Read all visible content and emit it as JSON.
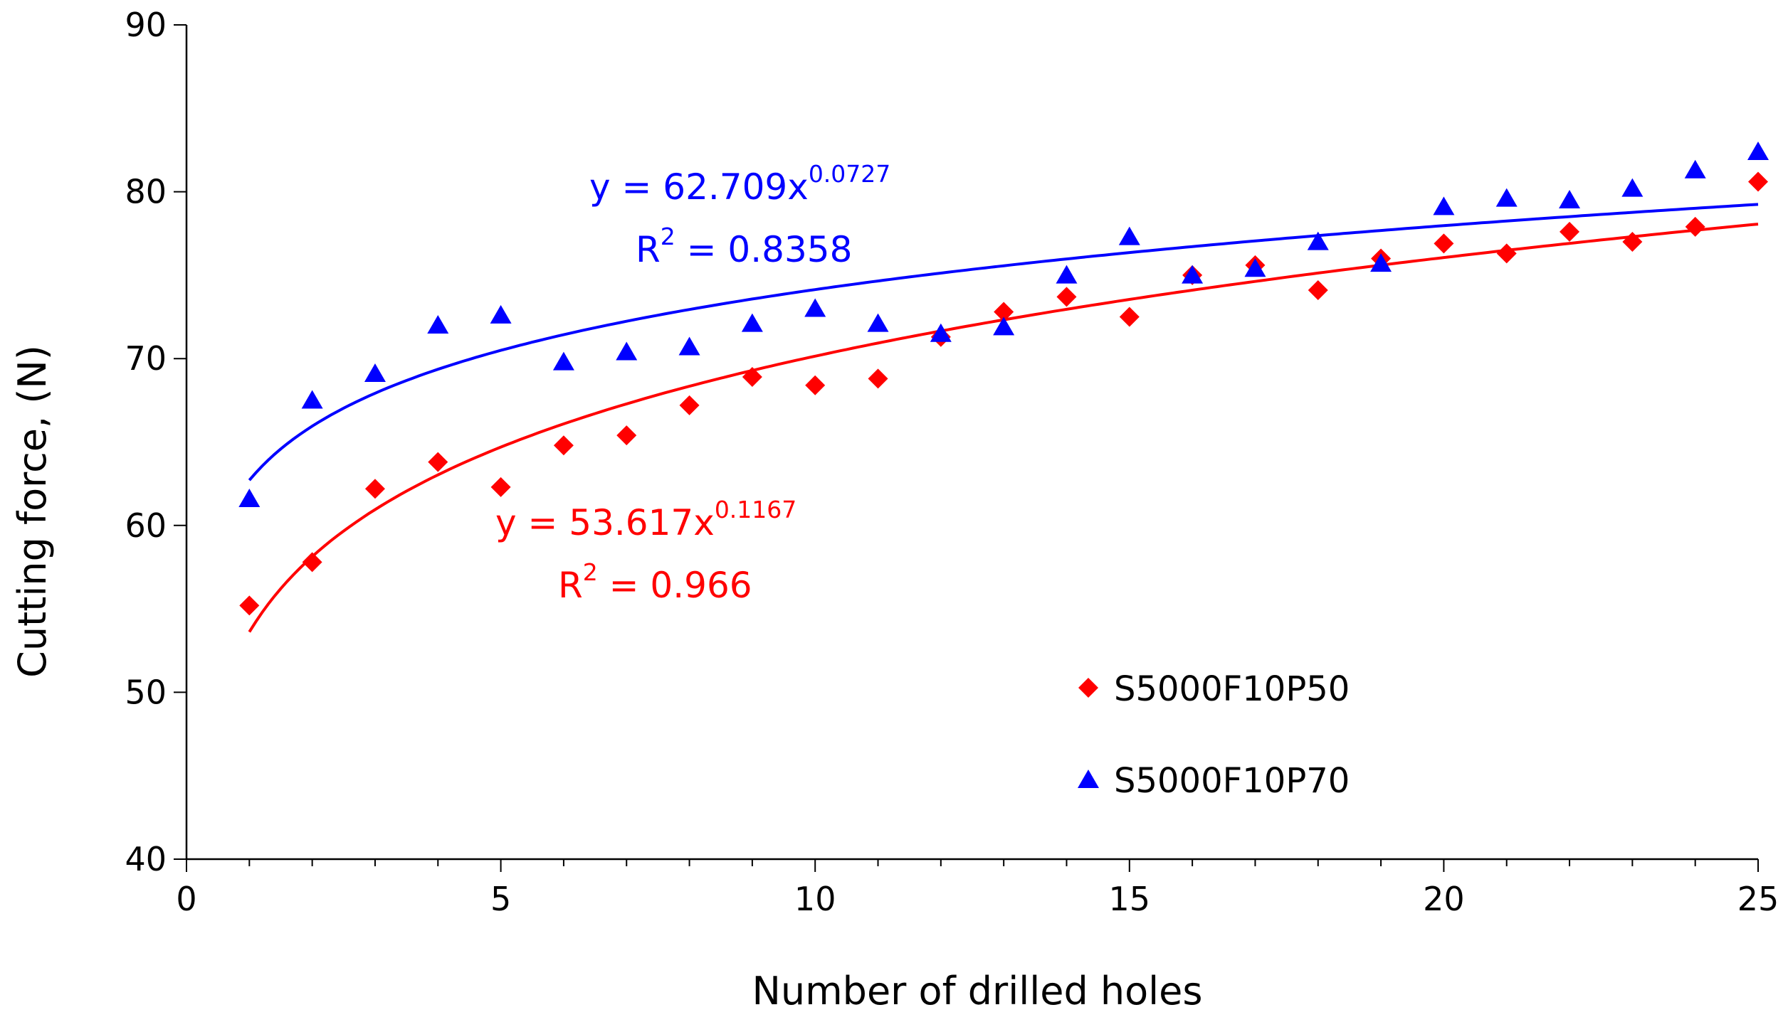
{
  "chart_data": {
    "type": "scatter",
    "title": "",
    "xlabel": "Number of drilled holes",
    "ylabel": "Cutting force, (N)",
    "xlim": [
      0,
      25
    ],
    "ylim": [
      40,
      90
    ],
    "xticks": [
      0,
      5,
      10,
      15,
      20,
      25
    ],
    "xtick_labels": [
      "0",
      "5",
      "10",
      "15",
      "20",
      "25"
    ],
    "yticks": [
      40,
      50,
      60,
      70,
      80,
      90
    ],
    "ytick_labels": [
      "40",
      "50",
      "60",
      "70",
      "80",
      "90"
    ],
    "grid": false,
    "legend_position": "lower-right",
    "series": [
      {
        "name": "S5000F10P50",
        "marker": "diamond",
        "color": "#ff0000",
        "x": [
          1,
          2,
          3,
          4,
          5,
          6,
          7,
          8,
          9,
          10,
          11,
          12,
          13,
          14,
          15,
          16,
          17,
          18,
          19,
          20,
          21,
          22,
          23,
          24,
          25
        ],
        "y": [
          55.2,
          57.8,
          62.2,
          63.8,
          62.3,
          64.8,
          65.4,
          67.2,
          68.9,
          68.4,
          68.8,
          71.3,
          72.8,
          73.7,
          72.5,
          75.0,
          75.6,
          74.1,
          76.0,
          76.9,
          76.3,
          77.6,
          77.0,
          77.9,
          80.6
        ],
        "trendline": {
          "type": "power",
          "a": 53.617,
          "b": 0.1167,
          "equation": "y = 53.617x",
          "exponent": "0.1167",
          "r2_label": "R",
          "r2_sup": "2",
          "r2_value": " = 0.966"
        }
      },
      {
        "name": "S5000F10P70",
        "marker": "triangle",
        "color": "#0000ff",
        "x": [
          1,
          2,
          3,
          4,
          5,
          6,
          7,
          8,
          9,
          10,
          11,
          12,
          13,
          14,
          15,
          16,
          17,
          18,
          19,
          20,
          21,
          22,
          23,
          24,
          25
        ],
        "y": [
          61.6,
          67.5,
          69.1,
          72.0,
          72.6,
          69.8,
          70.4,
          70.7,
          72.1,
          73.0,
          72.1,
          71.5,
          71.9,
          75.0,
          77.3,
          75.0,
          75.4,
          77.0,
          75.7,
          79.1,
          79.6,
          79.5,
          80.2,
          81.3,
          82.4
        ],
        "trendline": {
          "type": "power",
          "a": 62.709,
          "b": 0.0727,
          "equation": "y = 62.709x",
          "exponent": "0.0727",
          "r2_label": "R",
          "r2_sup": "2",
          "r2_value": " = 0.8358"
        }
      }
    ]
  }
}
